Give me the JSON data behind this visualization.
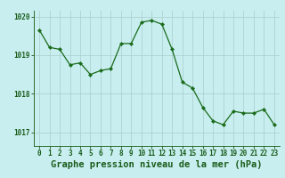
{
  "x": [
    0,
    1,
    2,
    3,
    4,
    5,
    6,
    7,
    8,
    9,
    10,
    11,
    12,
    13,
    14,
    15,
    16,
    17,
    18,
    19,
    20,
    21,
    22,
    23
  ],
  "y": [
    1019.65,
    1019.2,
    1019.15,
    1018.75,
    1018.8,
    1018.5,
    1018.6,
    1018.65,
    1019.3,
    1019.3,
    1019.85,
    1019.9,
    1019.8,
    1019.15,
    1018.3,
    1018.15,
    1017.65,
    1017.3,
    1017.2,
    1017.55,
    1017.5,
    1017.5,
    1017.6,
    1017.2
  ],
  "line_color": "#1a6b1a",
  "marker_color": "#1a6b1a",
  "bg_color": "#c8eef0",
  "grid_color": "#aacccc",
  "axis_color": "#2d6b2d",
  "text_color": "#1a5c1a",
  "xlabel": "Graphe pression niveau de la mer (hPa)",
  "yticks": [
    1017,
    1018,
    1019,
    1020
  ],
  "xticks": [
    0,
    1,
    2,
    3,
    4,
    5,
    6,
    7,
    8,
    9,
    10,
    11,
    12,
    13,
    14,
    15,
    16,
    17,
    18,
    19,
    20,
    21,
    22,
    23
  ],
  "ylim": [
    1016.65,
    1020.15
  ],
  "xlim": [
    -0.5,
    23.5
  ],
  "tick_fontsize": 5.5,
  "xlabel_fontsize": 7.5
}
